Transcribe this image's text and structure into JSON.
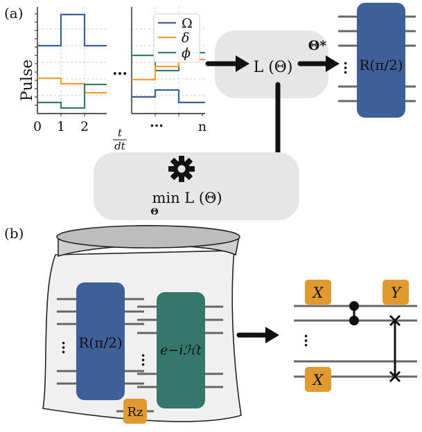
{
  "panel_a": {
    "label": "(a)",
    "y_axis_label": "Pulse",
    "x_ticks_left": [
      "0",
      "1",
      "2"
    ],
    "x_tick_right_dots": "…",
    "x_tick_right_n": "n",
    "ellipsis_between_plots": "…",
    "legend": [
      {
        "symbol": "Ω",
        "color": "#3b5f96"
      },
      {
        "symbol": "δ",
        "color": "#f0a032"
      },
      {
        "symbol": "ϕ",
        "color": "#3a7a6a"
      }
    ],
    "loss_node": "L (Θ)",
    "theta_star": "Θ*",
    "rotation_gate": "R(π/2)",
    "derivative_top": "t",
    "derivative_bottom": "dt",
    "minimize_text": "min L (Θ)",
    "minimize_subscript": "Θ"
  },
  "panel_b": {
    "label": "(b)",
    "rotation_gate": "R(π/2)",
    "evolution_gate": "e−iℋt",
    "rz_gate": "Rz",
    "gate_x_top": "X",
    "gate_y": "Y",
    "gate_x_bottom": "X"
  },
  "colors": {
    "blue_gate": "#3f5f98",
    "teal_gate": "#35776a",
    "orange_gate": "#e09a30",
    "bubble": "#e6e6e6",
    "bag": "#f0f0f0"
  }
}
